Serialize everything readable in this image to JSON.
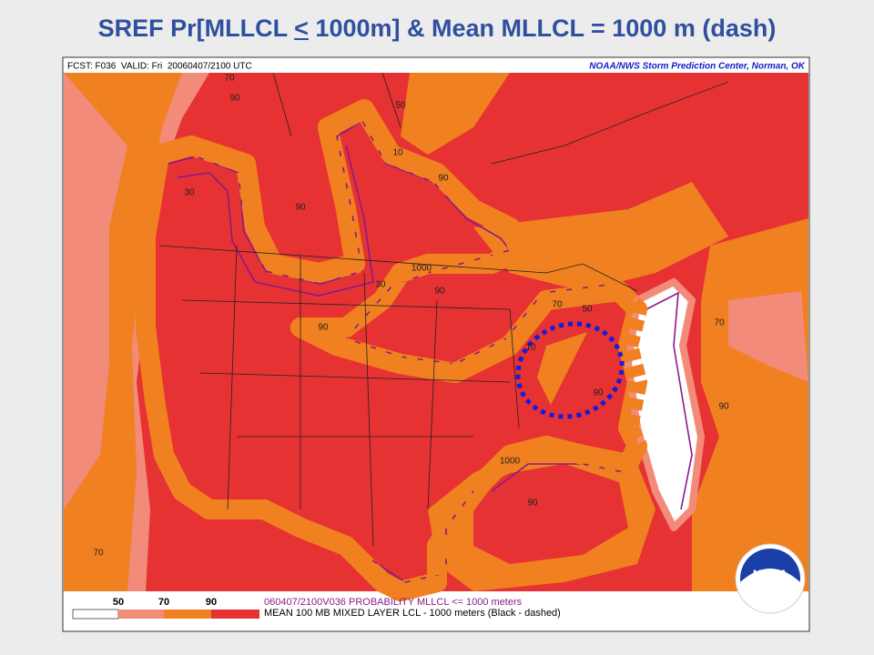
{
  "title": {
    "before": "SREF Pr[MLLCL ",
    "underlined": "<",
    "after": " 1000m] & Mean MLLCL = 1000 m (dash)"
  },
  "map": {
    "header_left": "FCST: F036  VALID: Fri  20060407/2100 UTC",
    "header_right": "NOAA/NWS Storm Prediction Center, Norman, OK",
    "contour_labels": [
      "70",
      "90",
      "10",
      "50",
      "30",
      "90",
      "90",
      "1000",
      "30",
      "90",
      "90",
      "70",
      "50",
      "90",
      "1000",
      "90",
      "70",
      "10",
      "90",
      "70"
    ],
    "logo": "NOAA"
  },
  "legend": {
    "labels": [
      "50",
      "70",
      "90"
    ],
    "lines": [
      "060407/2100V036 PROBABILITY MLLCL <= 1000 meters",
      "MEAN 100 MB MIXED LAYER LCL - 1000 meters (Black - dashed)"
    ]
  }
}
